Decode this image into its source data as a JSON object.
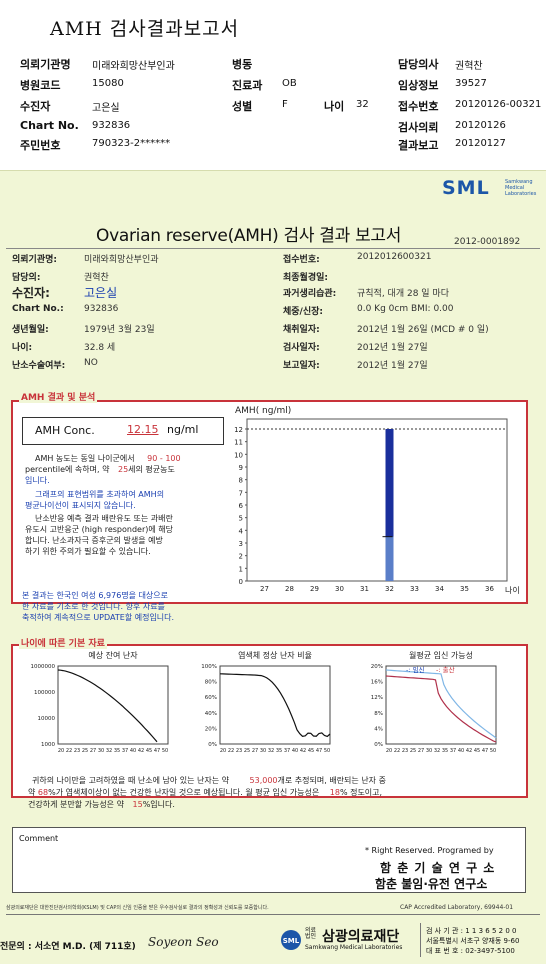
{
  "header": {
    "title": "AMH 검사결과보고서",
    "institution_label": "의뢰기관명",
    "institution": "미래와희망산부인과",
    "code_label": "병원코드",
    "code": "15080",
    "patient_label": "수진자",
    "patient": "고은실",
    "chart_label": "Chart No.",
    "chart": "932836",
    "rrn_label": "주민번호",
    "rrn": "790323-2******",
    "ward_label": "병동",
    "ward": "",
    "dept_label": "진료과",
    "dept": "OB",
    "sex_label": "성별",
    "sex": "F",
    "age_label": "나이",
    "age": "32",
    "doctor_label": "담당의사",
    "doctor": "권혁찬",
    "clinical_label": "임상정보",
    "clinical": "39527",
    "receipt_label": "접수번호",
    "receipt": "20120126-00321",
    "request_label": "검사의뢰",
    "request": "20120126",
    "report_label": "결과보고",
    "report": "20120127"
  },
  "report": {
    "logo": "SML",
    "logo_sub1": "Samkwang",
    "logo_sub2": "Medical",
    "logo_sub3": "Laboratories",
    "title": "Ovarian reserve(AMH) 검사 결과 보고서",
    "report_no": "2012-0001892",
    "left_info": [
      {
        "label": "의뢰기관명:",
        "value": "미래와희망산부인과"
      },
      {
        "label": "담당의:",
        "value": "권혁찬"
      },
      {
        "label": "수진자:",
        "value": "고은실"
      },
      {
        "label": "Chart No.:",
        "value": "932836"
      },
      {
        "label": "생년월일:",
        "value": "1979년 3월 23일"
      },
      {
        "label": "나이:",
        "value": "32.8 세"
      },
      {
        "label": "난소수술여부:",
        "value": "NO"
      }
    ],
    "right_info": [
      {
        "label": "접수번호:",
        "value": "2012012600321"
      },
      {
        "label": "최종월경일:",
        "value": ""
      },
      {
        "label": "과거생리습관:",
        "value": "규칙적, 대개   28 일 마다"
      },
      {
        "label": "체중/신장:",
        "value": "0.0 Kg        0cm    BMI:   0.00"
      },
      {
        "label": "채취일자:",
        "value": "2012년 1월 26일    (MCD # 0 일)"
      },
      {
        "label": "검사일자:",
        "value": "2012년 1월 27일"
      },
      {
        "label": "보고일자:",
        "value": "2012년 1월 27일"
      }
    ],
    "amh_section": "AMH 결과 및 분석",
    "amh_conc_label": "AMH Conc.",
    "amh_value": "12.15",
    "amh_unit": "ng/ml",
    "para1_a": "AMH 농도는 동일 나이군에서",
    "para1_range": "90 - 100",
    "para1_b": "percentile에 속하며, 약",
    "para1_pct": "25",
    "para1_c": "세의 평균농도",
    "para1_d": "입니다.",
    "para2": [
      "그래프의 표현범위를 초과하여 AMH의",
      "평균나이선이 표시되지 않습니다."
    ],
    "para3": [
      "난소반응 예측 결과 배란유도 또는 과배란",
      "유도시 고반응군 (high responder)에 해당",
      "합니다. 난소과자극 증후군의 발생을 예방",
      "하기 위한 주의가 필요할 수 있습니다."
    ],
    "para4": [
      "본 결과는 한국인 여성 6,976명을 대상으로",
      "한 자료를 기초로 한 것입니다. 향후 자료를",
      "축적하여 계속적으로 UPDATE할 예정입니다."
    ],
    "age_section": "나이에 따른 기본 자료",
    "bottom_text_a": "귀하의 나이만을 고려하였을 때 난소에 남아 있는 난자는 약",
    "bottom_eggs": "53,000",
    "bottom_text_b": "개로 추정되며, 배란되는 난자 중",
    "bottom_text_c": "약",
    "bottom_norm": "68",
    "bottom_text_d": "%가 염색체이상이 없는 건강한 난자일 것으로 예상됩니다. 월 평균 임신 가능성은",
    "bottom_preg": "18",
    "bottom_text_e": "% 정도이고,",
    "bottom_text_f": "건강하게 분만할 가능성은 약",
    "bottom_birth": "15",
    "bottom_text_g": "%입니다.",
    "comment_label": "Comment",
    "rights": "* Right Reserved. Programed by",
    "inst1": "함 춘 기 술 연 구 소",
    "inst2": "함춘 불임·유전 연구소",
    "footer_note": "삼광의료재단은 대한진단검사의학회(KSLM) 및 CAP의 신임 인증을 받은 우수검사실로 결과의 정확성과 신뢰도를 보증합니다.",
    "cap": "CAP Accredited Laboratory,   69944-01",
    "doctor_sign": "전문의 : 서소연 M.D. (제 711호)",
    "signature": "Soyeon Seo",
    "foundation": "삼광의료재단",
    "foundation_prefix": "의료법인",
    "foundation_en": "Samkwang Medical Laboratories",
    "reg_no": "검 사 기 관 : 1 1 3 6 5 2 0 0",
    "address": "서울특별시 서초구 양재동 9-60",
    "phone": "대 표 번 호 : 02-3497-5100"
  },
  "chart_data": [
    {
      "type": "bar",
      "ylabel": "AMH( ng/ml)",
      "xlabel": "나이",
      "x": [
        27,
        28,
        29,
        30,
        31,
        32,
        33,
        34,
        35,
        36
      ],
      "ylim": [
        0,
        12
      ],
      "yticks": [
        0,
        1,
        2,
        3,
        4,
        5,
        6,
        7,
        8,
        9,
        10,
        11,
        12
      ],
      "reference_line": 12,
      "series": [
        {
          "x": 32,
          "value": 12.15
        }
      ]
    },
    {
      "type": "line",
      "title": "예상 잔여 난자",
      "x": [
        20,
        22,
        23,
        25,
        27,
        30,
        32,
        35,
        37,
        40,
        42,
        45,
        47,
        50
      ],
      "yticks": [
        "1000000",
        "100000",
        "10000",
        "1000"
      ],
      "y_log": true,
      "ylim": [
        1000,
        1000000
      ]
    },
    {
      "type": "line",
      "title": "염색체 정상 난자 비율",
      "x": [
        20,
        22,
        23,
        25,
        27,
        30,
        32,
        35,
        37,
        40,
        42,
        45,
        47,
        50
      ],
      "yticks": [
        "100%",
        "80%",
        "60%",
        "40%",
        "20%",
        "0%"
      ],
      "ylim": [
        0,
        100
      ]
    },
    {
      "type": "line",
      "title": "월평균 임신 가능성",
      "legend": [
        "임신",
        "출산"
      ],
      "x": [
        20,
        22,
        23,
        25,
        27,
        30,
        32,
        35,
        37,
        40,
        42,
        45,
        47,
        50
      ],
      "yticks": [
        "20%",
        "16%",
        "12%",
        "8%",
        "4%",
        "0%"
      ],
      "ylim": [
        0,
        20
      ]
    }
  ]
}
